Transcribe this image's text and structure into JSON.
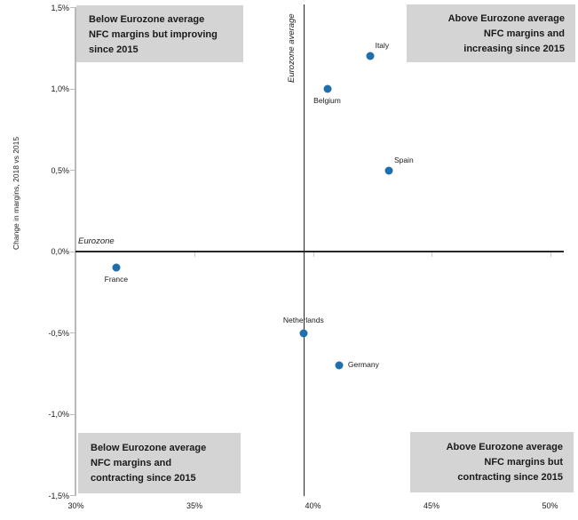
{
  "chart": {
    "quadrant_top_left": "Below Eurozone average\nNFC margins but improving\nsince 2015",
    "quadrant_top_right": "Above Eurozone average\nNFC margins and\nincreasing since 2015",
    "quadrant_bottom_left": "Below Eurozone average\nNFC margins and\ncontracting since 2015",
    "quadrant_bottom_right": "Above Eurozone average\nNFC margins but\ncontracting since 2015",
    "eurozone_line_label": "Eurozone",
    "eurozone_average_label": "Eurozone average"
  },
  "chart_data": {
    "type": "scatter",
    "title": "",
    "xlabel": "",
    "ylabel": "Change in margins, 2018 vs 2015",
    "xlim": [
      30,
      50
    ],
    "ylim": [
      -1.5,
      1.5
    ],
    "grid": false,
    "legend": false,
    "x_ticks": [
      {
        "value": 30,
        "label": "30%"
      },
      {
        "value": 35,
        "label": "35%"
      },
      {
        "value": 40,
        "label": "40%"
      },
      {
        "value": 45,
        "label": "45%"
      },
      {
        "value": 50,
        "label": "50%"
      }
    ],
    "y_ticks": [
      {
        "value": 1.5,
        "label": "1,5%"
      },
      {
        "value": 1.0,
        "label": "1,0%"
      },
      {
        "value": 0.5,
        "label": "0,5%"
      },
      {
        "value": 0.0,
        "label": "0,0%"
      },
      {
        "value": -0.5,
        "label": "-0,5%"
      },
      {
        "value": -1.0,
        "label": "-1,0%"
      },
      {
        "value": -1.5,
        "label": "-1,5%"
      }
    ],
    "reference_lines": {
      "horizontal_y": 0.0,
      "horizontal_label": "Eurozone",
      "vertical_x": 39.6,
      "vertical_label": "Eurozone average"
    },
    "points": [
      {
        "name": "Italy",
        "x": 42.4,
        "y": 1.2,
        "label_position": "above-right"
      },
      {
        "name": "Belgium",
        "x": 40.6,
        "y": 1.0,
        "label_position": "below"
      },
      {
        "name": "Spain",
        "x": 43.2,
        "y": 0.5,
        "label_position": "above-right"
      },
      {
        "name": "France",
        "x": 31.7,
        "y": -0.1,
        "label_position": "below"
      },
      {
        "name": "Netherlands",
        "x": 39.6,
        "y": -0.5,
        "label_position": "above"
      },
      {
        "name": "Germany",
        "x": 41.1,
        "y": -0.7,
        "label_position": "right"
      }
    ],
    "point_color": "#1f6fad",
    "quadrant_box_color": "#d4d4d4"
  }
}
